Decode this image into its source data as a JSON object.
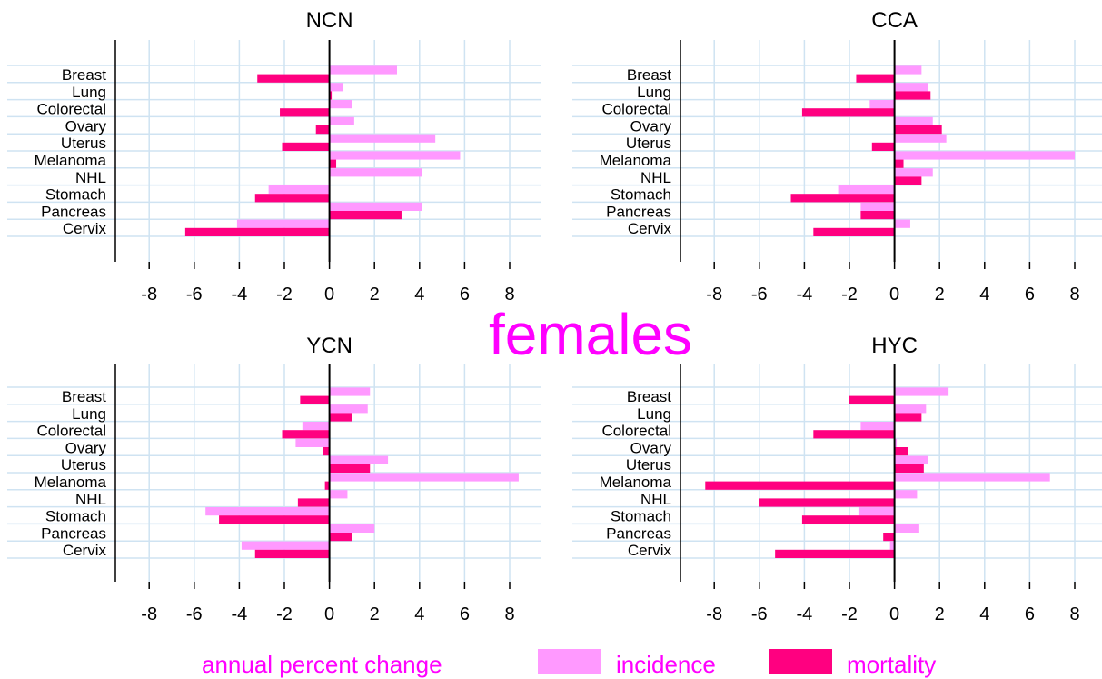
{
  "figure": {
    "center_label": "females",
    "legend": {
      "xlabel": "annual percent change",
      "items": [
        {
          "label": "incidence",
          "color": "#ff99ff"
        },
        {
          "label": "mortality",
          "color": "#ff0080"
        }
      ]
    },
    "colors": {
      "incidence": "#ff99ff",
      "mortality": "#ff0080",
      "grid": "#cfe3f2"
    }
  },
  "chart_data": [
    {
      "type": "bar",
      "orientation": "horizontal",
      "title": "NCN",
      "categories": [
        "Breast",
        "Lung",
        "Colorectal",
        "Ovary",
        "Uterus",
        "Melanoma",
        "NHL",
        "Stomach",
        "Pancreas",
        "Cervix"
      ],
      "series": [
        {
          "name": "incidence",
          "values": [
            3.0,
            0.6,
            1.0,
            1.1,
            4.7,
            5.8,
            4.1,
            -2.7,
            4.1,
            -4.1
          ]
        },
        {
          "name": "mortality",
          "values": [
            -3.2,
            0.1,
            -2.2,
            -0.6,
            -2.1,
            0.3,
            0.0,
            -3.3,
            3.2,
            -6.4
          ]
        }
      ],
      "xticks": [
        -8,
        -6,
        -4,
        -2,
        0,
        2,
        4,
        6,
        8
      ],
      "xlim": [
        -9.5,
        9.5
      ],
      "xlabel": "",
      "grid": true
    },
    {
      "type": "bar",
      "orientation": "horizontal",
      "title": "CCA",
      "categories": [
        "Breast",
        "Lung",
        "Colorectal",
        "Ovary",
        "Uterus",
        "Melanoma",
        "NHL",
        "Stomach",
        "Pancreas",
        "Cervix"
      ],
      "series": [
        {
          "name": "incidence",
          "values": [
            1.2,
            1.5,
            -1.1,
            1.7,
            2.3,
            8.0,
            1.7,
            -2.5,
            -1.5,
            0.7
          ]
        },
        {
          "name": "mortality",
          "values": [
            -1.7,
            1.6,
            -4.1,
            2.1,
            -1.0,
            0.4,
            1.2,
            -4.6,
            -1.5,
            -3.6
          ]
        }
      ],
      "xticks": [
        -8,
        -6,
        -4,
        -2,
        0,
        2,
        4,
        6,
        8
      ],
      "xlim": [
        -9.5,
        9.5
      ],
      "xlabel": "",
      "grid": true
    },
    {
      "type": "bar",
      "orientation": "horizontal",
      "title": "YCN",
      "categories": [
        "Breast",
        "Lung",
        "Colorectal",
        "Ovary",
        "Uterus",
        "Melanoma",
        "NHL",
        "Stomach",
        "Pancreas",
        "Cervix"
      ],
      "series": [
        {
          "name": "incidence",
          "values": [
            1.8,
            1.7,
            -1.2,
            -1.5,
            2.6,
            8.4,
            0.8,
            -5.5,
            2.0,
            -3.9
          ]
        },
        {
          "name": "mortality",
          "values": [
            -1.3,
            1.0,
            -2.1,
            -0.3,
            1.8,
            -0.2,
            -1.4,
            -4.9,
            1.0,
            -3.3
          ]
        }
      ],
      "xticks": [
        -8,
        -6,
        -4,
        -2,
        0,
        2,
        4,
        6,
        8
      ],
      "xlim": [
        -9.5,
        9.5
      ],
      "xlabel": "",
      "grid": true
    },
    {
      "type": "bar",
      "orientation": "horizontal",
      "title": "HYC",
      "categories": [
        "Breast",
        "Lung",
        "Colorectal",
        "Ovary",
        "Uterus",
        "Melanoma",
        "NHL",
        "Stomach",
        "Pancreas",
        "Cervix"
      ],
      "series": [
        {
          "name": "incidence",
          "values": [
            2.4,
            1.4,
            -1.5,
            0.1,
            1.5,
            6.9,
            1.0,
            -1.6,
            1.1,
            -0.2
          ]
        },
        {
          "name": "mortality",
          "values": [
            -2.0,
            1.2,
            -3.6,
            0.6,
            1.3,
            -8.4,
            -6.0,
            -4.1,
            -0.5,
            -5.3
          ]
        }
      ],
      "xticks": [
        -8,
        -6,
        -4,
        -2,
        0,
        2,
        4,
        6,
        8
      ],
      "xlim": [
        -9.5,
        9.5
      ],
      "xlabel": "",
      "grid": true
    }
  ]
}
